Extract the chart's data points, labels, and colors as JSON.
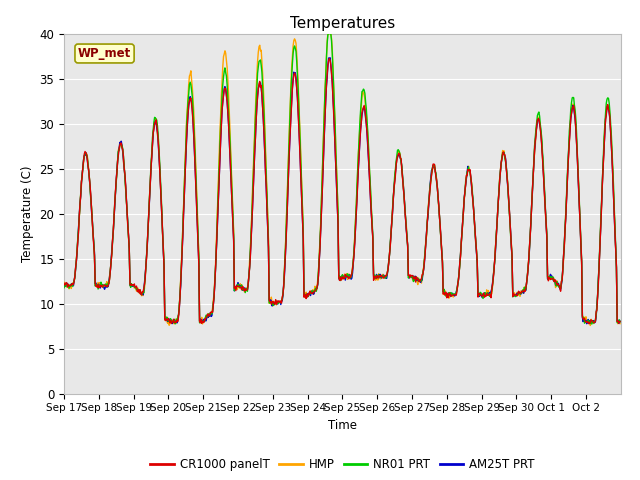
{
  "title": "Temperatures",
  "ylabel": "Temperature (C)",
  "xlabel": "Time",
  "annotation": "WP_met",
  "ylim": [
    0,
    40
  ],
  "bg_color": "#e8e8e8",
  "series_colors": {
    "CR1000 panelT": "#dd0000",
    "HMP": "#ffa500",
    "NR01 PRT": "#00cc00",
    "AM25T PRT": "#0000cc"
  },
  "xtick_labels": [
    "Sep 17",
    "Sep 18",
    "Sep 19",
    "Sep 20",
    "Sep 21",
    "Sep 22",
    "Sep 23",
    "Sep 24",
    "Sep 25",
    "Sep 26",
    "Sep 27",
    "Sep 28",
    "Sep 29",
    "Sep 30",
    "Oct 1",
    "Oct 2"
  ],
  "ytick_labels": [
    0,
    5,
    10,
    15,
    20,
    25,
    30,
    35,
    40
  ],
  "linewidth": 1.0,
  "day_peaks": [
    28,
    26,
    29,
    31,
    34,
    34,
    35,
    36,
    38,
    28,
    26,
    25,
    25,
    28,
    32,
    32
  ],
  "day_mins": [
    12,
    12,
    12,
    8,
    8,
    12,
    10,
    11,
    13,
    13,
    13,
    11,
    11,
    11,
    13,
    8
  ],
  "hmp_extra": [
    0,
    0,
    0,
    0,
    4,
    4,
    4,
    4,
    4,
    0,
    0,
    0,
    0,
    0,
    0,
    0
  ],
  "nr01_extra": [
    0,
    0,
    0,
    1,
    2,
    2,
    3,
    3,
    4,
    1,
    0,
    0,
    0,
    0,
    1,
    1
  ]
}
